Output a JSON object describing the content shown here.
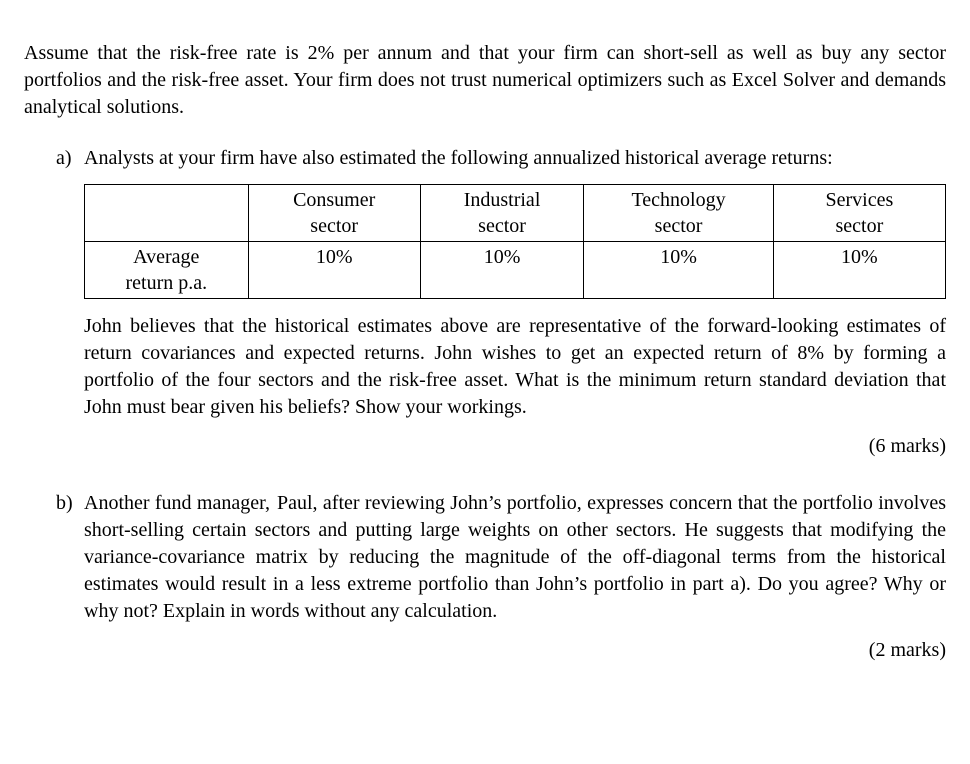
{
  "intro": "Assume that the risk-free rate is 2% per annum and that your firm can short-sell as well as buy any sector portfolios and the risk-free asset. Your firm does not trust numerical optimizers such as Excel Solver and demands analytical solutions.",
  "questions": {
    "a": {
      "label": "a)",
      "lead": "Analysts at your firm have also estimated the following annualized historical average returns:",
      "table": {
        "row_label": "Average return p.a.",
        "columns": [
          {
            "line1": "Consumer",
            "line2": "sector"
          },
          {
            "line1": "Industrial",
            "line2": "sector"
          },
          {
            "line1": "Technology",
            "line2": "sector"
          },
          {
            "line1": "Services",
            "line2": "sector"
          }
        ],
        "values": [
          "10%",
          "10%",
          "10%",
          "10%"
        ]
      },
      "body": "John believes that the historical estimates above are representative of the forward-looking estimates of return covariances and expected returns. John wishes to get an expected return of 8% by forming a portfolio of the four sectors and the risk-free asset. What is the minimum return standard deviation that John must bear given his beliefs? Show your workings.",
      "marks": "(6 marks)"
    },
    "b": {
      "label": "b)",
      "body": "Another fund manager,  Paul, after reviewing John’s portfolio, expresses concern that the portfolio involves short-selling certain sectors and putting large weights on other sectors. He suggests that modifying the variance-covariance matrix by reducing the magnitude of the off-diagonal terms from the historical estimates would result in a less extreme portfolio than John’s portfolio in part a). Do you agree? Why or why not? Explain in words without any calculation.",
      "marks": "(2 marks)"
    }
  }
}
